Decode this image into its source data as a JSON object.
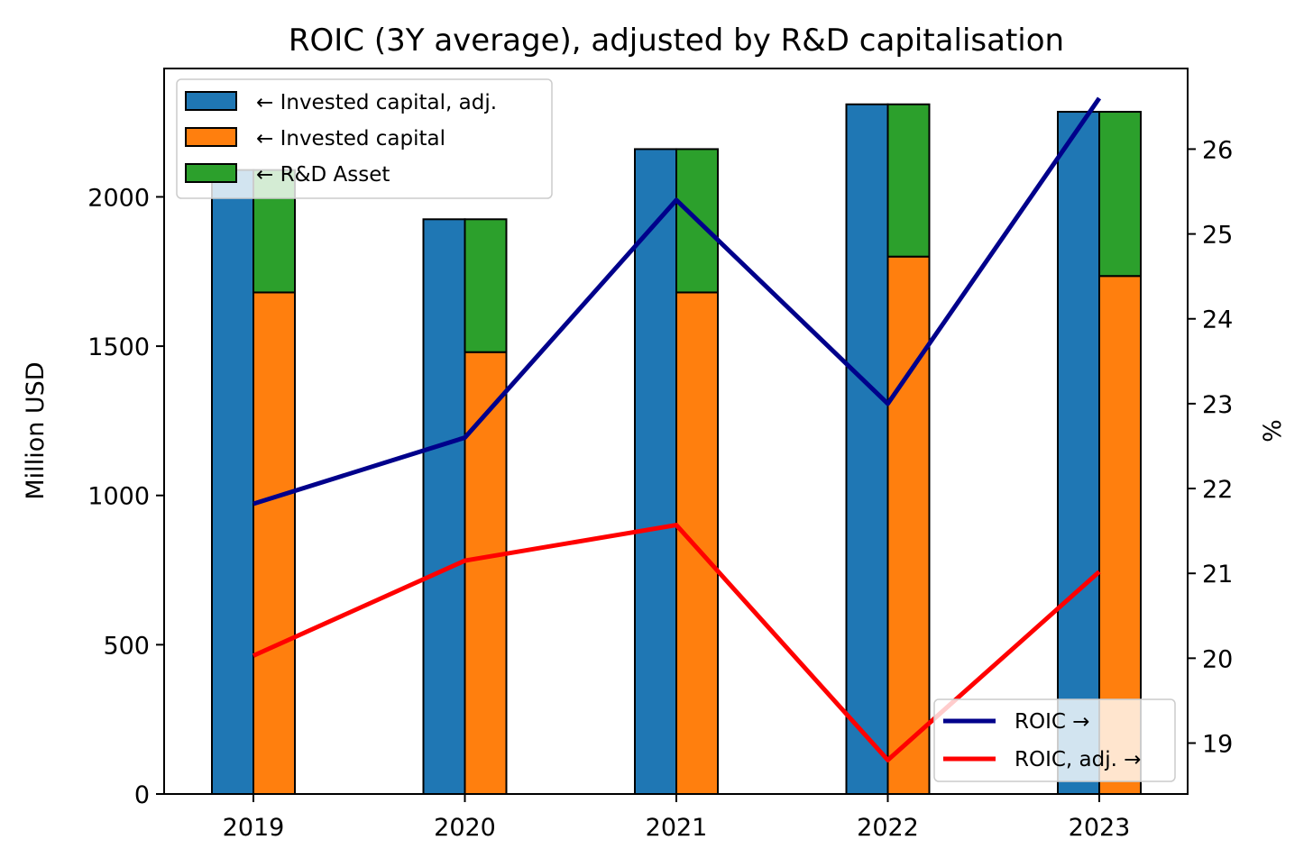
{
  "chart_data": {
    "type": "bar",
    "title": "ROIC (3Y average), adjusted by R&D capitalisation",
    "categories": [
      "2019",
      "2020",
      "2021",
      "2022",
      "2023"
    ],
    "ylabel_left": "Million USD",
    "ylabel_right": "%",
    "ylim_left": [
      0,
      2430
    ],
    "ylim_right": [
      18.4,
      26.95
    ],
    "yticks_left": [
      0,
      500,
      1000,
      1500,
      2000
    ],
    "yticks_right": [
      19,
      20,
      21,
      22,
      23,
      24,
      25,
      26
    ],
    "bar_series": [
      {
        "name": "← Invested capital, adj.",
        "color": "#1f77b4",
        "values": [
          2090,
          1925,
          2160,
          2310,
          2285
        ]
      },
      {
        "name": "← Invested capital",
        "color": "#ff7f0e",
        "values": [
          1680,
          1480,
          1680,
          1800,
          1735
        ],
        "stack_group": "right"
      },
      {
        "name": "← R&D Asset",
        "color": "#2ca02c",
        "values": [
          410,
          445,
          480,
          510,
          550
        ],
        "stack_group": "right",
        "stacked_on": "← Invested capital"
      }
    ],
    "line_series": [
      {
        "name": "ROIC →",
        "color": "#00008b",
        "axis": "right",
        "values": [
          21.82,
          22.6,
          25.4,
          23.0,
          26.6
        ]
      },
      {
        "name": "ROIC, adj. →",
        "color": "#ff0000",
        "axis": "right",
        "values": [
          20.03,
          21.15,
          21.57,
          18.8,
          21.02
        ]
      }
    ],
    "legend_bars_position": "top-left",
    "legend_lines_position": "bottom-right",
    "grid": false
  }
}
